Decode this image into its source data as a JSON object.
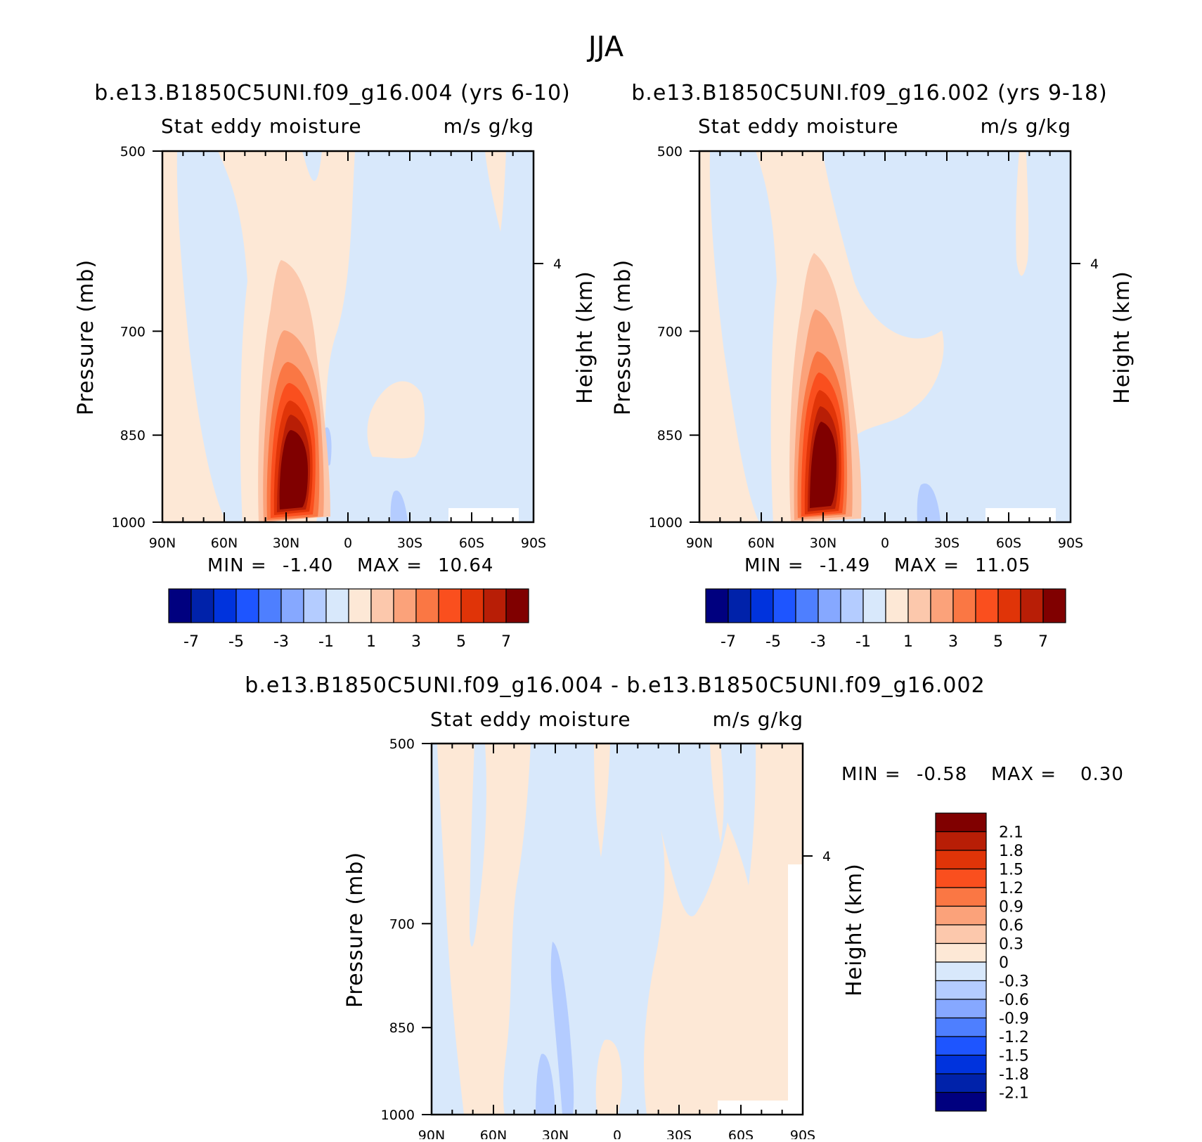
{
  "figure": {
    "title": "JJA",
    "colors": {
      "full_scale": [
        "#00007f",
        "#0022aa",
        "#0033dd",
        "#1e55ff",
        "#4e7fff",
        "#86a8ff",
        "#b4ccff",
        "#d8e8fb",
        "#fde8d6",
        "#fcc8ac",
        "#fba27a",
        "#fa7744",
        "#fa4f1e",
        "#e03408",
        "#b81e06",
        "#800000"
      ],
      "diff_scale": [
        "#00007f",
        "#0022aa",
        "#0033dd",
        "#1e55ff",
        "#4e7fff",
        "#86a8ff",
        "#b4ccff",
        "#d8e8fb",
        "#fde8d6",
        "#fcc8ac",
        "#fba27a",
        "#fa7744",
        "#fa4f1e",
        "#e03408",
        "#b81e06",
        "#800000"
      ]
    }
  },
  "chart_data": [
    {
      "type": "heatmap",
      "title": "b.e13.B1850C5UNI.f09_g16.004 (yrs 6-10)",
      "left_header": "Stat eddy moisture",
      "right_header": "m/s g/kg",
      "ylabel": "Pressure (mb)",
      "ylabel_right": "Height (km)",
      "x_ticks": [
        "90N",
        "60N",
        "30N",
        "0",
        "30S",
        "60S",
        "90S"
      ],
      "y_ticks": [
        "500",
        "700",
        "850",
        "1000"
      ],
      "y_right_tick": "4",
      "min_label": "MIN =",
      "min": "-1.40",
      "max_label": "MAX =",
      "max": "10.64",
      "colorbar_labels": [
        "-7",
        "-5",
        "-3",
        "-1",
        "1",
        "3",
        "5",
        "7"
      ],
      "peak_latitude": 25,
      "peak_value": 10.64
    },
    {
      "type": "heatmap",
      "title": "b.e13.B1850C5UNI.f09_g16.002 (yrs 9-18)",
      "left_header": "Stat eddy moisture",
      "right_header": "m/s g/kg",
      "ylabel": "Pressure (mb)",
      "ylabel_right": "Height (km)",
      "x_ticks": [
        "90N",
        "60N",
        "30N",
        "0",
        "30S",
        "60S",
        "90S"
      ],
      "y_ticks": [
        "500",
        "700",
        "850",
        "1000"
      ],
      "y_right_tick": "4",
      "min_label": "MIN =",
      "min": "-1.49",
      "max_label": "MAX =",
      "max": "11.05",
      "colorbar_labels": [
        "-7",
        "-5",
        "-3",
        "-1",
        "1",
        "3",
        "5",
        "7"
      ],
      "peak_latitude": 26,
      "peak_value": 11.05
    },
    {
      "type": "heatmap",
      "title": "b.e13.B1850C5UNI.f09_g16.004 - b.e13.B1850C5UNI.f09_g16.002",
      "left_header": "Stat eddy moisture",
      "right_header": "m/s g/kg",
      "ylabel": "Pressure (mb)",
      "ylabel_right": "Height (km)",
      "x_ticks": [
        "90N",
        "60N",
        "30N",
        "0",
        "30S",
        "60S",
        "90S"
      ],
      "y_ticks": [
        "500",
        "700",
        "850",
        "1000"
      ],
      "y_right_tick": "4",
      "min_label": "MIN =",
      "min": "-0.58",
      "max_label": "MAX =",
      "max": "0.30",
      "colorbar_labels": [
        "2.1",
        "1.8",
        "1.5",
        "1.2",
        "0.9",
        "0.6",
        "0.3",
        "0",
        "-0.3",
        "-0.6",
        "-0.9",
        "-1.2",
        "-1.5",
        "-1.8",
        "-2.1"
      ]
    }
  ]
}
